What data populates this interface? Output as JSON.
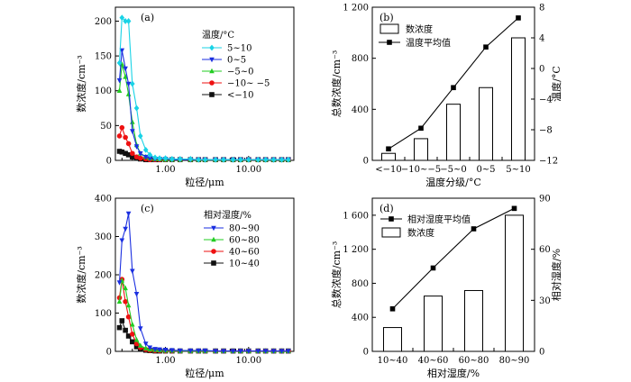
{
  "chart_data": [
    {
      "id": "a",
      "type": "line",
      "panel_label": "(a)",
      "xlabel": "粒径/μm",
      "ylabel": "数浓度/cm⁻³",
      "xscale": "log",
      "xlim": [
        0.25,
        35
      ],
      "ylim": [
        0,
        220
      ],
      "xticks": [
        1,
        10
      ],
      "xtick_labels": [
        "1.00",
        "10.00"
      ],
      "yticks": [
        0,
        50,
        100,
        150,
        200
      ],
      "ytick_labels": [
        "0",
        "50",
        "100",
        "150",
        "200"
      ],
      "legend_title": "温度/°C",
      "legend_position": "right",
      "x": [
        0.28,
        0.3,
        0.33,
        0.36,
        0.4,
        0.45,
        0.5,
        0.58,
        0.65,
        0.75,
        0.85,
        1.0,
        1.2,
        1.5,
        2,
        2.5,
        3,
        4,
        5,
        6.5,
        8,
        10,
        13,
        16,
        20,
        25,
        30
      ],
      "series": [
        {
          "name": "5~10",
          "color": "#19d3e6",
          "marker": "diamond",
          "values": [
            140,
            205,
            200,
            200,
            110,
            75,
            35,
            15,
            8,
            4,
            3,
            3,
            2,
            2,
            2,
            1,
            1,
            1,
            1,
            1,
            1,
            1,
            1,
            1,
            1,
            1,
            1
          ]
        },
        {
          "name": "0~5",
          "color": "#1a2ee0",
          "marker": "triangle-down",
          "values": [
            115,
            158,
            132,
            110,
            42,
            20,
            10,
            5,
            3,
            2,
            2,
            2,
            1,
            1,
            1,
            1,
            1,
            1,
            1,
            1,
            1,
            1,
            1,
            1,
            1,
            1,
            1
          ]
        },
        {
          "name": "−5~0",
          "color": "#22cc22",
          "marker": "triangle-up",
          "values": [
            100,
            138,
            120,
            95,
            55,
            22,
            10,
            5,
            3,
            2,
            2,
            1,
            1,
            1,
            1,
            1,
            1,
            1,
            1,
            1,
            1,
            1,
            1,
            1,
            1,
            1,
            1
          ]
        },
        {
          "name": "−10~ −5",
          "color": "#ee1111",
          "marker": "circle",
          "values": [
            35,
            47,
            33,
            24,
            10,
            5,
            3,
            2,
            1,
            1,
            1,
            1,
            1,
            1,
            1,
            1,
            1,
            1,
            1,
            1,
            1,
            1,
            1,
            1,
            1,
            1,
            1
          ]
        },
        {
          "name": "<−10",
          "color": "#111111",
          "marker": "square",
          "values": [
            13,
            12,
            10,
            8,
            5,
            3,
            2,
            1,
            1,
            1,
            1,
            1,
            1,
            1,
            1,
            1,
            1,
            1,
            1,
            1,
            1,
            1,
            1,
            1,
            1,
            1,
            1
          ]
        }
      ]
    },
    {
      "id": "b",
      "type": "bar",
      "panel_label": "(b)",
      "categories": [
        "<−10",
        "−10~−5",
        "−5~0",
        "0~5",
        "5~10"
      ],
      "xlabel": "温度分级/°C",
      "ylabel": "总数浓度/cm⁻³",
      "y2label": "温度/°C",
      "ylim": [
        0,
        1200
      ],
      "y2lim": [
        -12,
        8
      ],
      "yticks": [
        0,
        400,
        800,
        1200
      ],
      "ytick_labels": [
        "0",
        "400",
        "800",
        "1 200"
      ],
      "y2ticks": [
        -12,
        -8,
        -4,
        0,
        4,
        8
      ],
      "y2tick_labels": [
        "−12",
        "−8",
        "−4",
        "0",
        "4",
        "8"
      ],
      "legend_position": "top-left",
      "series": [
        {
          "name": "数浓度",
          "kind": "bar",
          "axis": "left",
          "values": [
            55,
            170,
            440,
            570,
            960
          ]
        },
        {
          "name": "温度平均值",
          "kind": "line",
          "axis": "right",
          "values": [
            -10.5,
            -7.8,
            -2.5,
            2.8,
            6.6
          ]
        }
      ]
    },
    {
      "id": "c",
      "type": "line",
      "panel_label": "(c)",
      "xlabel": "粒径/μm",
      "ylabel": "数浓度/cm⁻³",
      "xscale": "log",
      "xlim": [
        0.25,
        35
      ],
      "ylim": [
        0,
        400
      ],
      "xticks": [
        1,
        10
      ],
      "xtick_labels": [
        "1.00",
        "10.00"
      ],
      "yticks": [
        0,
        100,
        200,
        300,
        400
      ],
      "ytick_labels": [
        "0",
        "100",
        "200",
        "300",
        "400"
      ],
      "legend_title": "相对湿度/%",
      "legend_position": "right",
      "x": [
        0.28,
        0.3,
        0.33,
        0.36,
        0.4,
        0.45,
        0.5,
        0.58,
        0.65,
        0.75,
        0.85,
        1.0,
        1.2,
        1.5,
        2,
        2.5,
        3,
        4,
        5,
        6.5,
        8,
        10,
        13,
        16,
        20,
        25,
        30
      ],
      "series": [
        {
          "name": "80~90",
          "color": "#1a2ee0",
          "marker": "triangle-down",
          "values": [
            180,
            290,
            320,
            360,
            210,
            150,
            60,
            20,
            10,
            6,
            5,
            4,
            3,
            2,
            2,
            2,
            2,
            1,
            1,
            1,
            1,
            1,
            1,
            1,
            1,
            1,
            1
          ]
        },
        {
          "name": "60~80",
          "color": "#22cc22",
          "marker": "triangle-up",
          "values": [
            130,
            185,
            165,
            120,
            70,
            30,
            15,
            8,
            5,
            4,
            3,
            2,
            2,
            1,
            1,
            1,
            1,
            1,
            1,
            1,
            1,
            1,
            1,
            1,
            1,
            1,
            1
          ]
        },
        {
          "name": "40~60",
          "color": "#ee1111",
          "marker": "circle",
          "values": [
            140,
            188,
            130,
            90,
            45,
            20,
            10,
            5,
            3,
            2,
            2,
            1,
            1,
            1,
            1,
            1,
            1,
            1,
            1,
            1,
            1,
            1,
            1,
            1,
            1,
            1,
            1
          ]
        },
        {
          "name": "10~40",
          "color": "#111111",
          "marker": "square",
          "values": [
            62,
            80,
            55,
            40,
            25,
            12,
            6,
            3,
            2,
            1,
            1,
            1,
            1,
            1,
            1,
            1,
            1,
            1,
            1,
            1,
            1,
            1,
            1,
            1,
            1,
            1,
            1
          ]
        }
      ]
    },
    {
      "id": "d",
      "type": "bar",
      "panel_label": "(d)",
      "categories": [
        "10~40",
        "40~60",
        "60~80",
        "80~90"
      ],
      "xlabel": "相对湿度/%",
      "ylabel": "总数浓度/cm⁻³",
      "y2label": "相对湿度/%",
      "ylim": [
        0,
        1800
      ],
      "y2lim": [
        0,
        90
      ],
      "yticks": [
        0,
        400,
        800,
        1200,
        1600
      ],
      "ytick_labels": [
        "0",
        "400",
        "800",
        "1 200",
        "1 600"
      ],
      "y2ticks": [
        0,
        30,
        60,
        90
      ],
      "y2tick_labels": [
        "0",
        "30",
        "60",
        "90"
      ],
      "legend_position": "top-left",
      "series": [
        {
          "name": "相对湿度平均值",
          "kind": "line",
          "axis": "right",
          "values": [
            25,
            49,
            72,
            84
          ]
        },
        {
          "name": "数浓度",
          "kind": "bar",
          "axis": "left",
          "values": [
            280,
            650,
            715,
            1600
          ]
        }
      ]
    }
  ]
}
